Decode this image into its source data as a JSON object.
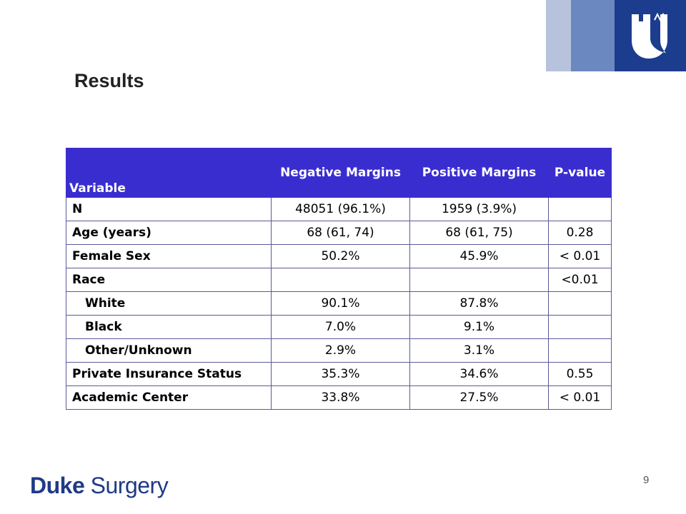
{
  "slide": {
    "title": "Results",
    "page_number": "9"
  },
  "branding": {
    "logo_bold": "Duke",
    "logo_regular": "Surgery",
    "colors": {
      "primary": "#1c3d8e",
      "mid": "#6c88c0",
      "light": "#b7c2dc",
      "header": "#3a2dd0"
    }
  },
  "table": {
    "headers": [
      "Variable",
      "Negative Margins",
      "Positive Margins",
      "P-value"
    ],
    "rows": [
      {
        "variable": "N",
        "negative": "48051 (96.1%)",
        "positive": "1959 (3.9%)",
        "p": ""
      },
      {
        "variable": "Age (years)",
        "negative": "68 (61, 74)",
        "positive": "68 (61, 75)",
        "p": "0.28"
      },
      {
        "variable": "Female Sex",
        "negative": "50.2%",
        "positive": "45.9%",
        "p": "< 0.01"
      },
      {
        "variable": "Race",
        "negative": "",
        "positive": "",
        "p": "<0.01"
      },
      {
        "variable": "White",
        "negative": "90.1%",
        "positive": "87.8%",
        "p": ""
      },
      {
        "variable": "Black",
        "negative": "7.0%",
        "positive": "9.1%",
        "p": ""
      },
      {
        "variable": "Other/Unknown",
        "negative": "2.9%",
        "positive": "3.1%",
        "p": ""
      },
      {
        "variable": "Private Insurance Status",
        "negative": "35.3%",
        "positive": "34.6%",
        "p": "0.55"
      },
      {
        "variable": "Academic Center",
        "negative": "33.8%",
        "positive": "27.5%",
        "p": "< 0.01"
      }
    ]
  }
}
